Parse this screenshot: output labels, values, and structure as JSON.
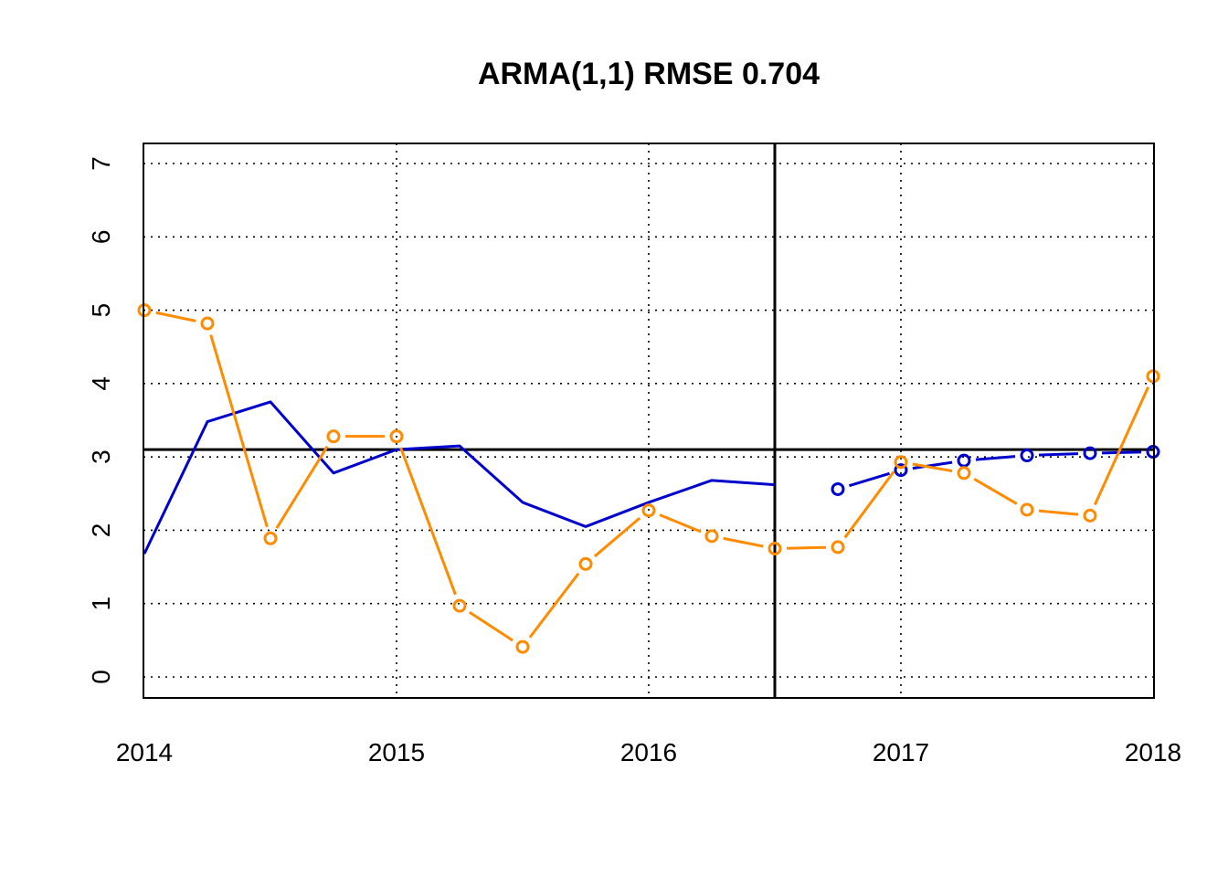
{
  "chart_data": {
    "type": "line",
    "title": "ARMA(1,1) RMSE 0.704",
    "xlabel": "",
    "ylabel": "",
    "xlim": [
      2014,
      2018
    ],
    "ylim": [
      0,
      7
    ],
    "x_ticks": [
      "2014",
      "2015",
      "2016",
      "2017",
      "2018"
    ],
    "y_ticks": [
      "0",
      "1",
      "2",
      "3",
      "4",
      "5",
      "6",
      "7"
    ],
    "grid": true,
    "legend": "none",
    "reference_lines": {
      "horizontal_y": 3.1,
      "vertical_x": 2016.5
    },
    "series": [
      {
        "style": "solid-line",
        "color": "#0000CD",
        "x": [
          2014.0,
          2014.25,
          2014.5,
          2014.75,
          2015.0,
          2015.25,
          2015.5,
          2015.75,
          2016.0,
          2016.25,
          2016.5
        ],
        "values": [
          1.68,
          3.48,
          3.75,
          2.78,
          3.1,
          3.15,
          2.38,
          2.05,
          2.38,
          2.68,
          2.62
        ]
      },
      {
        "style": "dashed-points",
        "color": "#0000CD",
        "x": [
          2016.75,
          2017.0,
          2017.25,
          2017.5,
          2017.75,
          2018.0
        ],
        "values": [
          2.56,
          2.82,
          2.95,
          3.02,
          3.05,
          3.07
        ]
      },
      {
        "style": "dashed-points",
        "color": "#FF8C00",
        "x": [
          2014.0,
          2014.25,
          2014.5,
          2014.75,
          2015.0,
          2015.25,
          2015.5,
          2015.75,
          2016.0,
          2016.25,
          2016.5,
          2016.75,
          2017.0,
          2017.25,
          2017.5,
          2017.75,
          2018.0
        ],
        "values": [
          5.0,
          4.82,
          1.89,
          3.28,
          3.28,
          0.97,
          0.41,
          1.54,
          2.27,
          1.92,
          1.75,
          1.77,
          2.93,
          2.78,
          2.28,
          2.2,
          4.1
        ]
      }
    ]
  }
}
